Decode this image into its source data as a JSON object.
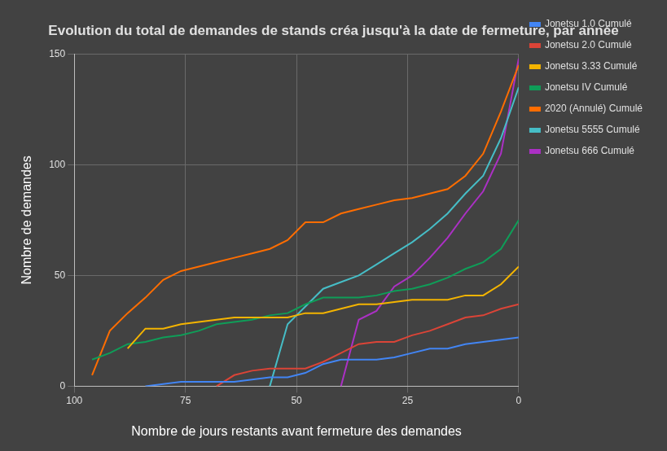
{
  "chart_data": {
    "type": "line",
    "title": "Evolution du total de demandes de stands créa jusqu'à la date de fermeture, par année",
    "x_label": "Nombre de jours restants avant fermeture des demandes",
    "y_label": "Nombre de demandes",
    "x": [
      100,
      96,
      92,
      88,
      84,
      80,
      76,
      72,
      68,
      64,
      60,
      56,
      52,
      48,
      44,
      40,
      36,
      32,
      28,
      24,
      20,
      16,
      12,
      8,
      4,
      0
    ],
    "series": [
      {
        "name": "Jonetsu 1.0 Cumulé",
        "color": "#4285F4",
        "values": [
          null,
          null,
          null,
          null,
          0,
          1,
          2,
          2,
          2,
          2,
          3,
          4,
          4,
          6,
          10,
          12,
          12,
          12,
          13,
          15,
          17,
          17,
          19,
          20,
          21,
          22
        ]
      },
      {
        "name": "Jonetsu 2.0 Cumulé",
        "color": "#DB4437",
        "values": [
          null,
          null,
          null,
          null,
          null,
          null,
          null,
          null,
          0,
          5,
          7,
          8,
          8,
          8,
          11,
          15,
          19,
          20,
          20,
          23,
          25,
          28,
          31,
          32,
          35,
          37
        ]
      },
      {
        "name": "Jonetsu 3.33 Cumulé",
        "color": "#F4B400",
        "values": [
          null,
          null,
          null,
          17,
          26,
          26,
          28,
          29,
          30,
          31,
          31,
          31,
          31,
          33,
          33,
          35,
          37,
          37,
          38,
          39,
          39,
          39,
          41,
          41,
          46,
          54
        ]
      },
      {
        "name": "Jonetsu IV Cumulé",
        "color": "#0F9D58",
        "values": [
          null,
          12,
          15,
          19,
          20,
          22,
          23,
          25,
          28,
          29,
          30,
          32,
          33,
          37,
          40,
          40,
          40,
          41,
          43,
          44,
          46,
          49,
          53,
          56,
          62,
          75
        ]
      },
      {
        "name": "2020 (Annulé) Cumulé",
        "color": "#FF6D00",
        "values": [
          null,
          5,
          25,
          33,
          40,
          48,
          52,
          54,
          56,
          58,
          60,
          62,
          66,
          74,
          74,
          78,
          80,
          82,
          84,
          85,
          87,
          89,
          95,
          105,
          124,
          145
        ]
      },
      {
        "name": "Jonetsu 5555 Cumulé",
        "color": "#46BDC6",
        "values": [
          null,
          null,
          null,
          null,
          null,
          null,
          null,
          null,
          null,
          null,
          null,
          0,
          28,
          36,
          44,
          47,
          50,
          55,
          60,
          65,
          71,
          78,
          87,
          95,
          112,
          135
        ]
      },
      {
        "name": "Jonetsu 666 Cumulé",
        "color": "#AB30C4",
        "values": [
          null,
          null,
          null,
          null,
          null,
          null,
          null,
          null,
          null,
          null,
          null,
          null,
          null,
          null,
          null,
          0,
          30,
          34,
          45,
          50,
          58,
          67,
          78,
          88,
          105,
          148
        ]
      }
    ],
    "xlim": [
      100,
      0
    ],
    "xticks": [
      100,
      75,
      50,
      25,
      0
    ],
    "ylim": [
      0,
      150
    ],
    "yticks": [
      0,
      50,
      100,
      150
    ],
    "grid": true,
    "legend": "right"
  }
}
